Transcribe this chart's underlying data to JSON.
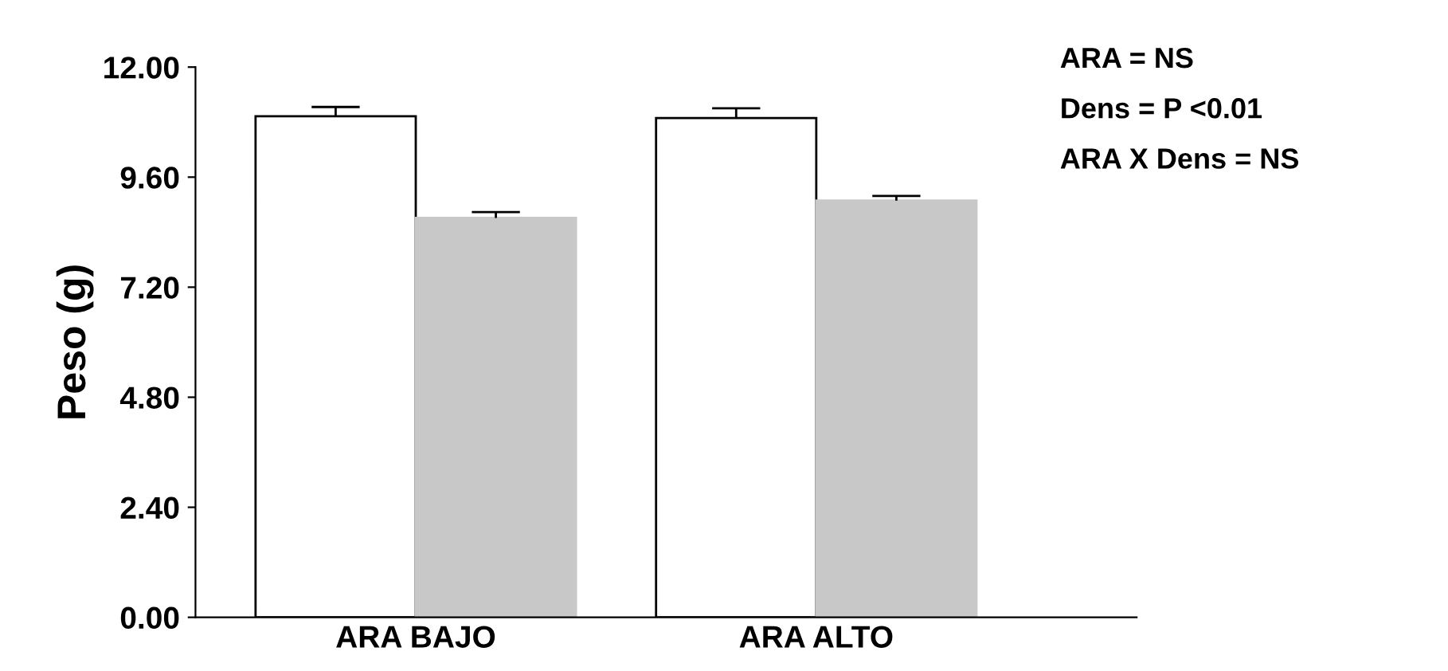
{
  "chart_data": {
    "type": "bar",
    "ylabel": "Peso (g)",
    "categories": [
      "ARA BAJO",
      "ARA ALTO"
    ],
    "series": [
      {
        "color": "#ffffff",
        "values": [
          10.93,
          10.89
        ],
        "errors": [
          [
            10.93,
            11.13
          ],
          [
            10.89,
            11.1
          ]
        ]
      },
      {
        "color": "#c8c8c8",
        "values": [
          8.71,
          9.09
        ],
        "errors": [
          [
            8.71,
            8.84
          ],
          [
            9.09,
            9.19
          ]
        ]
      }
    ],
    "ylim": [
      0,
      12
    ],
    "yticks": [
      {
        "value": 0,
        "label": "0.00"
      },
      {
        "value": 2.4,
        "label": "2.40"
      },
      {
        "value": 4.8,
        "label": "4.80"
      },
      {
        "value": 7.2,
        "label": "7.20"
      },
      {
        "value": 9.6,
        "label": "9.60"
      },
      {
        "value": 12,
        "label": "12.00"
      }
    ],
    "grid": false,
    "legend": false,
    "annotations": [
      "ARA = NS",
      "Dens = P <0.01",
      "ARA X Dens = NS"
    ]
  }
}
